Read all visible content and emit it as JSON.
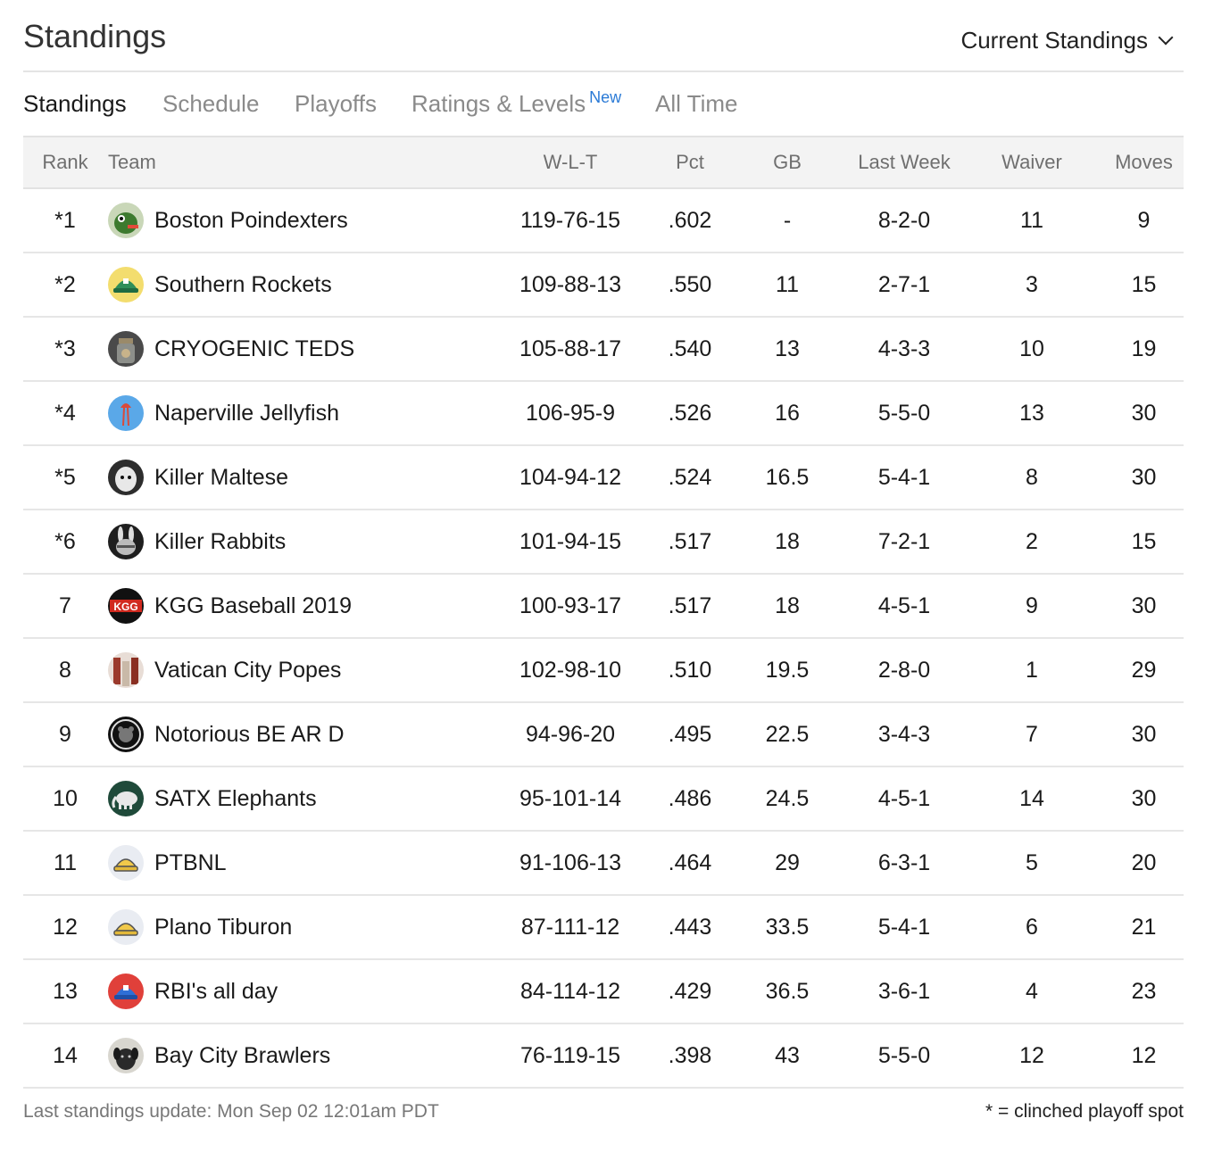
{
  "header": {
    "title": "Standings",
    "view_select": "Current Standings"
  },
  "tabs": [
    {
      "label": "Standings",
      "active": true
    },
    {
      "label": "Schedule"
    },
    {
      "label": "Playoffs"
    },
    {
      "label": "Ratings & Levels",
      "badge": "New"
    },
    {
      "label": "All Time"
    }
  ],
  "table": {
    "columns": [
      "Rank",
      "Team",
      "W-L-T",
      "Pct",
      "GB",
      "Last Week",
      "Waiver",
      "Moves"
    ],
    "rows": [
      {
        "rank": "*1",
        "team": "Boston Poindexters",
        "wlt": "119-76-15",
        "pct": ".602",
        "gb": "-",
        "last_week": "8-2-0",
        "waiver": "11",
        "moves": "9",
        "logo": "green-creature",
        "logo_color": "#3d7a2f"
      },
      {
        "rank": "*2",
        "team": "Southern Rockets",
        "wlt": "109-88-13",
        "pct": ".550",
        "gb": "11",
        "last_week": "2-7-1",
        "waiver": "3",
        "moves": "15",
        "logo": "cap-green",
        "logo_color": "#f1d86a"
      },
      {
        "rank": "*3",
        "team": "CRYOGENIC TEDS",
        "wlt": "105-88-17",
        "pct": ".540",
        "gb": "13",
        "last_week": "4-3-3",
        "waiver": "10",
        "moves": "19",
        "logo": "jar",
        "logo_color": "#5a5a5a"
      },
      {
        "rank": "*4",
        "team": "Naperville Jellyfish",
        "wlt": "106-95-9",
        "pct": ".526",
        "gb": "16",
        "last_week": "5-5-0",
        "waiver": "13",
        "moves": "30",
        "logo": "jellyfish",
        "logo_color": "#5aa8e8"
      },
      {
        "rank": "*5",
        "team": "Killer Maltese",
        "wlt": "104-94-12",
        "pct": ".524",
        "gb": "16.5",
        "last_week": "5-4-1",
        "waiver": "8",
        "moves": "30",
        "logo": "dog-white",
        "logo_color": "#2d2d2d"
      },
      {
        "rank": "*6",
        "team": "Killer Rabbits",
        "wlt": "101-94-15",
        "pct": ".517",
        "gb": "18",
        "last_week": "7-2-1",
        "waiver": "2",
        "moves": "15",
        "logo": "rabbit",
        "logo_color": "#222222"
      },
      {
        "rank": "7",
        "team": "KGG Baseball 2019",
        "wlt": "100-93-17",
        "pct": ".517",
        "gb": "18",
        "last_week": "4-5-1",
        "waiver": "9",
        "moves": "30",
        "logo": "kgg",
        "logo_color": "#c8261b"
      },
      {
        "rank": "8",
        "team": "Vatican City Popes",
        "wlt": "102-98-10",
        "pct": ".510",
        "gb": "19.5",
        "last_week": "2-8-0",
        "waiver": "1",
        "moves": "29",
        "logo": "popes",
        "logo_color": "#9b4a3c"
      },
      {
        "rank": "9",
        "team": "Notorious BE AR D",
        "wlt": "94-96-20",
        "pct": ".495",
        "gb": "22.5",
        "last_week": "3-4-3",
        "waiver": "7",
        "moves": "30",
        "logo": "bear-seal",
        "logo_color": "#111111"
      },
      {
        "rank": "10",
        "team": "SATX Elephants",
        "wlt": "95-101-14",
        "pct": ".486",
        "gb": "24.5",
        "last_week": "4-5-1",
        "waiver": "14",
        "moves": "30",
        "logo": "elephant",
        "logo_color": "#1f4a3a"
      },
      {
        "rank": "11",
        "team": "PTBNL",
        "wlt": "91-106-13",
        "pct": ".464",
        "gb": "29",
        "last_week": "6-3-1",
        "waiver": "5",
        "moves": "20",
        "logo": "cap-yellow",
        "logo_color": "#e9ecf2"
      },
      {
        "rank": "12",
        "team": "Plano Tiburon",
        "wlt": "87-111-12",
        "pct": ".443",
        "gb": "33.5",
        "last_week": "5-4-1",
        "waiver": "6",
        "moves": "21",
        "logo": "cap-yellow",
        "logo_color": "#e9ecf2"
      },
      {
        "rank": "13",
        "team": "RBI's all day",
        "wlt": "84-114-12",
        "pct": ".429",
        "gb": "36.5",
        "last_week": "3-6-1",
        "waiver": "4",
        "moves": "23",
        "logo": "cap-blue",
        "logo_color": "#e0403a"
      },
      {
        "rank": "14",
        "team": "Bay City Brawlers",
        "wlt": "76-119-15",
        "pct": ".398",
        "gb": "43",
        "last_week": "5-5-0",
        "waiver": "12",
        "moves": "12",
        "logo": "puppy",
        "logo_color": "#3a3a3a"
      }
    ]
  },
  "footer": {
    "update": "Last standings update: Mon Sep 02 12:01am PDT",
    "legend": "* = clinched playoff spot"
  }
}
